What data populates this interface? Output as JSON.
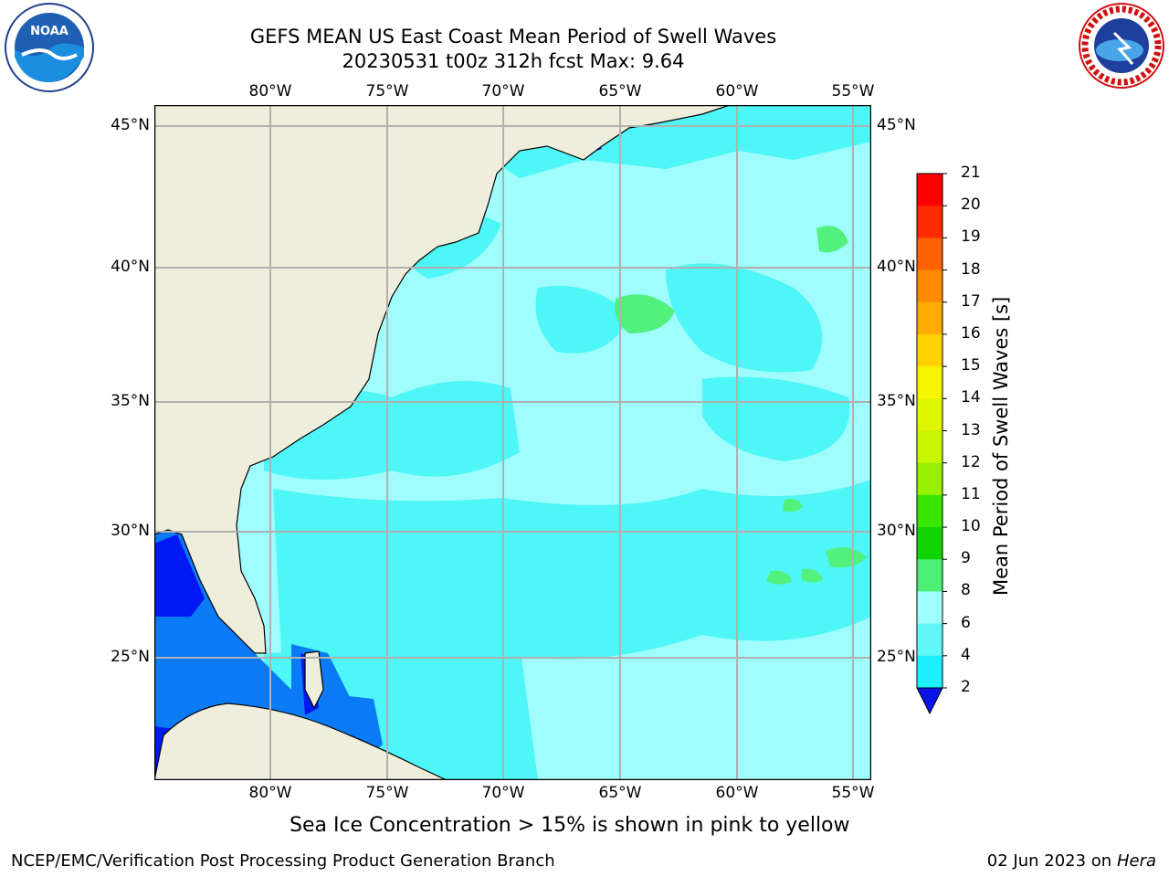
{
  "header": {
    "title_line1": "GEFS MEAN US East Coast Mean Period of Swell Waves",
    "title_line2": "20230531 t00z 312h fcst   Max: 9.64"
  },
  "logos": {
    "left": {
      "text": "NOAA",
      "icon": "noaa-logo"
    },
    "right": {
      "text": "NATIONAL WEATHER SERVICE",
      "icon": "nws-logo"
    }
  },
  "map": {
    "lon_labels": [
      "80°W",
      "75°W",
      "70°W",
      "65°W",
      "60°W",
      "55°W"
    ],
    "lat_labels": [
      "45°N",
      "40°N",
      "35°N",
      "30°N",
      "25°N"
    ],
    "colors": {
      "land": "#efeedc",
      "ocean_light": "#9ffdfd",
      "ocean_mid": "#4ef6f7",
      "band_blue": "#0b7af5",
      "band_deep": "#0019f2",
      "green": "#52f07c",
      "grid": "#b0b0b0"
    }
  },
  "colorbar": {
    "label": "Mean Period of Swell Waves [s]",
    "ticks": [
      "2",
      "4",
      "6",
      "8",
      "9",
      "10",
      "11",
      "12",
      "13",
      "14",
      "15",
      "16",
      "17",
      "18",
      "19",
      "20",
      "21"
    ],
    "colors": [
      "#0b3ef5",
      "#00cfff",
      "#1ff0ff",
      "#5ff7f7",
      "#9ffdfd",
      "#4cef74",
      "#10d400",
      "#36e600",
      "#96f000",
      "#c8f500",
      "#e0f500",
      "#f7f500",
      "#ffd200",
      "#ffaa00",
      "#ff8a00",
      "#ff6000",
      "#ff2a00",
      "#ff0000"
    ],
    "under_color": "#0a14e8"
  },
  "caption": "Sea Ice Concentration > 15% is shown in pink to yellow",
  "footer": {
    "left": "NCEP/EMC/Verification Post Processing Product Generation Branch",
    "right_date": "02 Jun 2023 on",
    "right_host": "Hera"
  }
}
